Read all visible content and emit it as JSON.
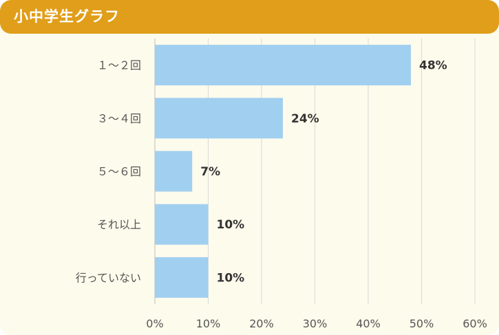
{
  "colors": {
    "header": "#e09e1a",
    "background": "#fdfbec",
    "bar": "#a1cff0",
    "grid": "#d9d9d9",
    "text": "#555555",
    "value_text": "#333333"
  },
  "chart_data": {
    "type": "bar",
    "orientation": "horizontal",
    "title": "小中学生グラフ",
    "categories": [
      "１～２回",
      "３～４回",
      "５～６回",
      "それ以上",
      "行っていない"
    ],
    "values": [
      48,
      24,
      7,
      10,
      10
    ],
    "value_labels": [
      "48%",
      "24%",
      "7%",
      "10%",
      "10%"
    ],
    "xlim": [
      0,
      60
    ],
    "xticks": [
      0,
      10,
      20,
      30,
      40,
      50,
      60
    ],
    "xtick_labels": [
      "0%",
      "10%",
      "20%",
      "30%",
      "40%",
      "50%",
      "60%"
    ],
    "xlabel": "",
    "ylabel": "",
    "grid": true,
    "legend": "none"
  }
}
